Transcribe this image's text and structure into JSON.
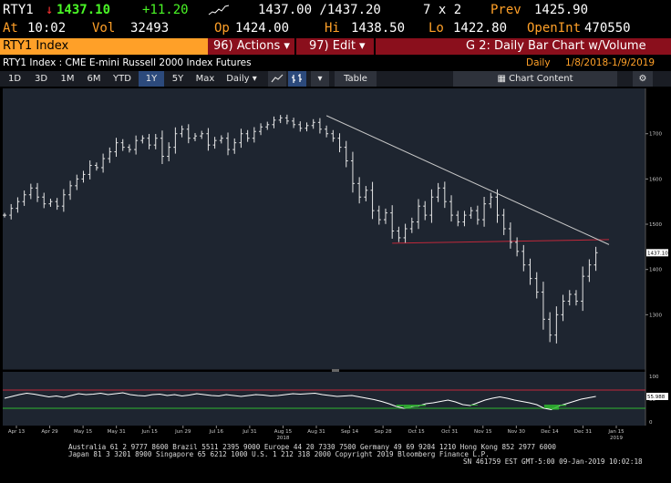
{
  "quote": {
    "ticker": "RTY1",
    "arrow": "↓",
    "last": "1437.10",
    "change": "+11.20",
    "bid_ask": "1437.00 /1437.20",
    "size": "7 x 2",
    "prev_label": "Prev",
    "prev": "1425.90",
    "at_label": "At",
    "time": "10:02",
    "vol_label": "Vol",
    "vol": "32493",
    "op_label": "Op",
    "open": "1424.00",
    "hi_label": "Hi",
    "high": "1438.50",
    "lo_label": "Lo",
    "low": "1422.80",
    "oi_label": "OpenInt",
    "open_interest": "470550"
  },
  "menubar": {
    "security": "RTY1 Index",
    "actions": "96) Actions ▾",
    "edit": "97) Edit ▾",
    "title": "G 2: Daily Bar Chart w/Volume"
  },
  "subtitle": {
    "left": "RTY1 Index : CME E-mini Russell 2000 Index Futures",
    "period": "Daily",
    "range": "1/8/2018-1/9/2019"
  },
  "toolbar": {
    "ranges": [
      "1D",
      "3D",
      "1M",
      "6M",
      "YTD",
      "1Y",
      "5Y",
      "Max"
    ],
    "selected": "1Y",
    "freq": "Daily ▾",
    "table": "Table",
    "chart_content": "Chart Content"
  },
  "colors": {
    "amber": "#ffa028",
    "bars": "#e6e6e6",
    "trendline": "#c8c8c8",
    "support": "#c0283a",
    "oscillator": "#ffffff",
    "upper_band": "#c0283a",
    "lower_band": "#2fb82f",
    "oversold_fill": "#2fb82f",
    "last_price_box": "#ffffff",
    "plot_bg": "#1e2530"
  },
  "chart_data": {
    "type": "bar",
    "title": "",
    "xlabel": "",
    "ylabel": "",
    "ylim": [
      1200,
      1780
    ],
    "yticks": [
      1300,
      1400,
      1500,
      1600,
      1700
    ],
    "last_price_label": "1437.10",
    "x_ticks": [
      "Apr 13",
      "Apr 29",
      "May 15",
      "May 31",
      "Jun 15",
      "Jun 29",
      "Jul 16",
      "Jul 31",
      "Aug 15",
      "Aug 31",
      "Sep 14",
      "Sep 28",
      "Oct 15",
      "Oct 31",
      "Nov 15",
      "Nov 30",
      "Dec 14",
      "Dec 31",
      "Jan 15"
    ],
    "x_year_labels": [
      {
        "after": "Aug 15",
        "text": "2018"
      },
      {
        "after": "Jan 15",
        "text": "2019"
      }
    ],
    "price_series": [
      {
        "t": 0,
        "c": 1520
      },
      {
        "t": 2,
        "c": 1535
      },
      {
        "t": 4,
        "c": 1550
      },
      {
        "t": 6,
        "c": 1565
      },
      {
        "t": 8,
        "c": 1580
      },
      {
        "t": 10,
        "c": 1560
      },
      {
        "t": 12,
        "c": 1545
      },
      {
        "t": 14,
        "c": 1550
      },
      {
        "t": 16,
        "c": 1540
      },
      {
        "t": 18,
        "c": 1565
      },
      {
        "t": 20,
        "c": 1585
      },
      {
        "t": 22,
        "c": 1600
      },
      {
        "t": 24,
        "c": 1610
      },
      {
        "t": 26,
        "c": 1630
      },
      {
        "t": 28,
        "c": 1625
      },
      {
        "t": 30,
        "c": 1645
      },
      {
        "t": 32,
        "c": 1660
      },
      {
        "t": 34,
        "c": 1680
      },
      {
        "t": 36,
        "c": 1670
      },
      {
        "t": 38,
        "c": 1665
      },
      {
        "t": 40,
        "c": 1685
      },
      {
        "t": 42,
        "c": 1690
      },
      {
        "t": 44,
        "c": 1675
      },
      {
        "t": 46,
        "c": 1690
      },
      {
        "t": 48,
        "c": 1650
      },
      {
        "t": 50,
        "c": 1670
      },
      {
        "t": 52,
        "c": 1700
      },
      {
        "t": 54,
        "c": 1710
      },
      {
        "t": 56,
        "c": 1690
      },
      {
        "t": 58,
        "c": 1695
      },
      {
        "t": 60,
        "c": 1700
      },
      {
        "t": 62,
        "c": 1675
      },
      {
        "t": 64,
        "c": 1685
      },
      {
        "t": 66,
        "c": 1690
      },
      {
        "t": 68,
        "c": 1665
      },
      {
        "t": 70,
        "c": 1680
      },
      {
        "t": 72,
        "c": 1700
      },
      {
        "t": 74,
        "c": 1690
      },
      {
        "t": 76,
        "c": 1705
      },
      {
        "t": 78,
        "c": 1715
      },
      {
        "t": 80,
        "c": 1720
      },
      {
        "t": 82,
        "c": 1730
      },
      {
        "t": 84,
        "c": 1735
      },
      {
        "t": 86,
        "c": 1728
      },
      {
        "t": 88,
        "c": 1720
      },
      {
        "t": 90,
        "c": 1712
      },
      {
        "t": 92,
        "c": 1718
      },
      {
        "t": 94,
        "c": 1725
      },
      {
        "t": 96,
        "c": 1710
      },
      {
        "t": 98,
        "c": 1700
      },
      {
        "t": 100,
        "c": 1690
      },
      {
        "t": 102,
        "c": 1670
      },
      {
        "t": 104,
        "c": 1640
      },
      {
        "t": 106,
        "c": 1590
      },
      {
        "t": 108,
        "c": 1560
      },
      {
        "t": 110,
        "c": 1575
      },
      {
        "t": 112,
        "c": 1530
      },
      {
        "t": 114,
        "c": 1510
      },
      {
        "t": 116,
        "c": 1525
      },
      {
        "t": 118,
        "c": 1485
      },
      {
        "t": 120,
        "c": 1470
      },
      {
        "t": 122,
        "c": 1490
      },
      {
        "t": 124,
        "c": 1505
      },
      {
        "t": 126,
        "c": 1540
      },
      {
        "t": 128,
        "c": 1520
      },
      {
        "t": 130,
        "c": 1560
      },
      {
        "t": 132,
        "c": 1580
      },
      {
        "t": 134,
        "c": 1550
      },
      {
        "t": 136,
        "c": 1520
      },
      {
        "t": 138,
        "c": 1505
      },
      {
        "t": 140,
        "c": 1520
      },
      {
        "t": 142,
        "c": 1530
      },
      {
        "t": 144,
        "c": 1510
      },
      {
        "t": 146,
        "c": 1545
      },
      {
        "t": 148,
        "c": 1560
      },
      {
        "t": 150,
        "c": 1520
      },
      {
        "t": 152,
        "c": 1490
      },
      {
        "t": 154,
        "c": 1460
      },
      {
        "t": 156,
        "c": 1440
      },
      {
        "t": 158,
        "c": 1410
      },
      {
        "t": 160,
        "c": 1380
      },
      {
        "t": 162,
        "c": 1350
      },
      {
        "t": 164,
        "c": 1290
      },
      {
        "t": 166,
        "c": 1255
      },
      {
        "t": 168,
        "c": 1300
      },
      {
        "t": 170,
        "c": 1330
      },
      {
        "t": 172,
        "c": 1345
      },
      {
        "t": 174,
        "c": 1330
      },
      {
        "t": 176,
        "c": 1385
      },
      {
        "t": 178,
        "c": 1410
      },
      {
        "t": 180,
        "c": 1437
      }
    ],
    "trendline": {
      "from": {
        "t": 98,
        "c": 1740
      },
      "to": {
        "t": 184,
        "c": 1455
      }
    },
    "support_line": {
      "from": {
        "t": 118,
        "c": 1458
      },
      "to": {
        "t": 184,
        "c": 1466
      }
    },
    "oscillator": {
      "upper_band": 70,
      "lower_band": 30,
      "ylim": [
        0,
        100
      ],
      "last_label": "55.988",
      "values": [
        52,
        56,
        60,
        63,
        61,
        58,
        55,
        57,
        54,
        58,
        62,
        60,
        61,
        63,
        60,
        62,
        64,
        60,
        58,
        57,
        60,
        61,
        58,
        60,
        57,
        59,
        62,
        60,
        58,
        57,
        60,
        58,
        56,
        58,
        60,
        59,
        57,
        58,
        60,
        62,
        61,
        62,
        63,
        60,
        58,
        56,
        57,
        58,
        55,
        52,
        49,
        45,
        40,
        34,
        30,
        33,
        35,
        40,
        42,
        45,
        48,
        44,
        38,
        36,
        42,
        48,
        52,
        55,
        52,
        48,
        45,
        42,
        38,
        30,
        27,
        35,
        40,
        45,
        50,
        53,
        56
      ]
    }
  },
  "footer": {
    "line1": "Australia 61 2 9777 8600 Brazil 5511 2395 9000 Europe 44 20 7330 7500 Germany 49 69 9204 1210 Hong Kong 852 2977 6000",
    "line2": "Japan 81 3 3201 8900      Singapore 65 6212 1000      U.S. 1 212 318 2000        Copyright 2019 Bloomberg Finance L.P.",
    "line3": "SN 461759 EST  GMT-5:00 09-Jan-2019 10:02:18"
  }
}
